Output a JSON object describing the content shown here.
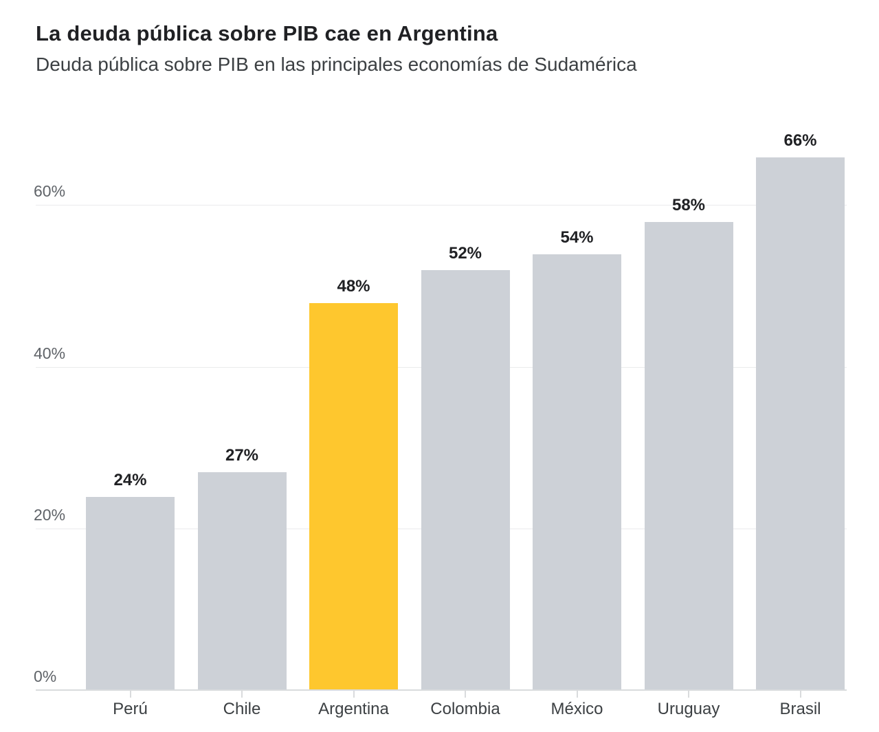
{
  "title": "La deuda pública sobre PIB cae en Argentina",
  "subtitle": "Deuda pública sobre PIB en las principales economías de Sudamérica",
  "chart_data": {
    "type": "bar",
    "title": "La deuda pública sobre PIB cae en Argentina",
    "subtitle": "Deuda pública sobre PIB en las principales economías de Sudamérica",
    "categories": [
      "Perú",
      "Chile",
      "Argentina",
      "Colombia",
      "México",
      "Uruguay",
      "Brasil"
    ],
    "values": [
      24,
      27,
      48,
      52,
      54,
      58,
      66
    ],
    "value_labels": [
      "24%",
      "27%",
      "48%",
      "52%",
      "54%",
      "58%",
      "66%"
    ],
    "highlight_category": "Argentina",
    "highlight_index": 2,
    "xlabel": "",
    "ylabel": "",
    "y_ticks": [
      0,
      20,
      40,
      60
    ],
    "y_tick_labels": [
      "0%",
      "20%",
      "40%",
      "60%"
    ],
    "ylim": [
      0,
      71
    ],
    "grid": "horizontal-behind-bars",
    "legend": "none",
    "colors": {
      "bar_default": "#CDD1D7",
      "bar_highlight": "#FEC72E",
      "gridline": "#EAEBEC",
      "axis_line": "#D9DBDD",
      "y_tick_label": "#5F6368",
      "x_category_label": "#3C4043",
      "value_label": "#202124",
      "background": "#FFFFFF"
    }
  }
}
